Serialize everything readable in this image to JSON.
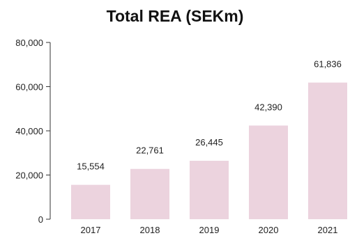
{
  "chart_data": {
    "type": "bar",
    "title": "Total REA (SEKm)",
    "categories": [
      "2017",
      "2018",
      "2019",
      "2020",
      "2021"
    ],
    "values": [
      15554,
      22761,
      26445,
      42390,
      61836
    ],
    "data_labels": [
      "15,554",
      "22,761",
      "26,445",
      "42,390",
      "61,836"
    ],
    "ylim": [
      0,
      80000
    ],
    "yticks": [
      0,
      20000,
      40000,
      60000,
      80000
    ],
    "ytick_labels": [
      "0",
      "20,000",
      "40,000",
      "60,000",
      "80,000"
    ],
    "grid": false,
    "legend": "none",
    "bar_color": "#ecd3de",
    "axis_color": "#333333"
  }
}
